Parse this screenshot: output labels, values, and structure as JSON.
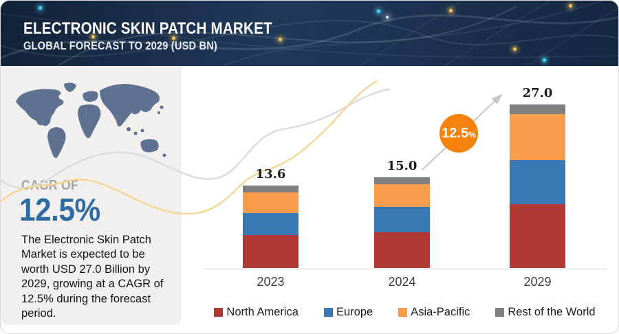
{
  "banner": {
    "title": "ELECTRONIC SKIN PATCH MARKET",
    "subtitle": "GLOBAL FORECAST TO 2029 (USD BN)"
  },
  "sidebar": {
    "cagr_label": "CAGR OF",
    "cagr_value": "12.5%",
    "description": "The Electronic Skin Patch Market is expected to be worth USD  27.0 Billion by 2029, growing at a CAGR of 12.5% during the forecast period."
  },
  "badge": {
    "value": "12.5",
    "percent": "%"
  },
  "chart_data": {
    "type": "bar",
    "stacked": true,
    "title": "Electronic Skin Patch Market",
    "subtitle": "Global Forecast to 2029 (USD BN)",
    "unit": "USD BN",
    "categories": [
      "2023",
      "2024",
      "2029"
    ],
    "series": [
      {
        "name": "North America",
        "color": "#B03A33",
        "values": [
          5.4,
          5.9,
          10.6
        ]
      },
      {
        "name": "Europe",
        "color": "#3878B4",
        "values": [
          3.7,
          4.2,
          7.2
        ]
      },
      {
        "name": "Asia-Pacific",
        "color": "#F99C4C",
        "values": [
          3.4,
          3.8,
          7.6
        ]
      },
      {
        "name": "Rest of the World",
        "color": "#7F7F7F",
        "values": [
          1.1,
          1.1,
          1.6
        ]
      }
    ],
    "totals": [
      13.6,
      15.0,
      27.0
    ],
    "growth_annotation": "12.5%",
    "legend_position": "bottom",
    "grid": false,
    "ylim": [
      0,
      30
    ]
  },
  "colors": {
    "banner_navy": "#1C3354",
    "panel_gray": "#F1F0EE",
    "map_slate": "#5E7190",
    "accent_blue": "#2D6BA4",
    "badge_orange": "#F6810C",
    "ribbon_gray": "#DCDCDC",
    "ribbon_gold": "#F5D795"
  }
}
